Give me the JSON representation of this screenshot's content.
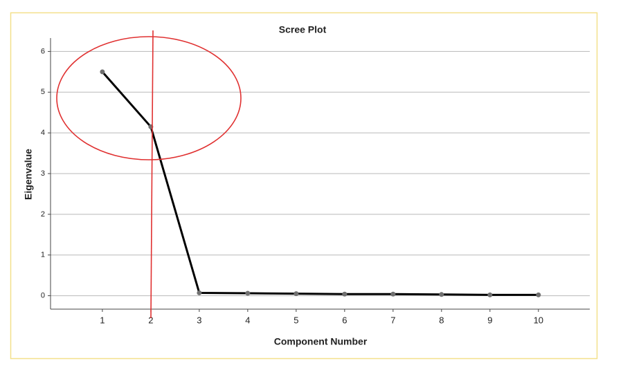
{
  "chart_data": {
    "type": "line",
    "title": "Scree Plot",
    "x_label": "Component Number",
    "y_label": "Eigenvalue",
    "x": [
      1,
      2,
      3,
      4,
      5,
      6,
      7,
      8,
      9,
      10
    ],
    "series": [
      {
        "name": "Eigenvalue",
        "color": "#000000",
        "marker_color": "#707070",
        "values": [
          5.5,
          4.15,
          0.07,
          0.06,
          0.05,
          0.04,
          0.04,
          0.03,
          0.02,
          0.02
        ]
      }
    ],
    "xlim": [
      -0.07,
      11.06
    ],
    "xticks": [
      1,
      2,
      3,
      4,
      5,
      6,
      7,
      8,
      9,
      10
    ],
    "ylim": [
      -0.33,
      6.33
    ],
    "yticks": [
      0,
      1,
      2,
      3,
      4,
      5,
      6
    ],
    "grid": true
  }
}
